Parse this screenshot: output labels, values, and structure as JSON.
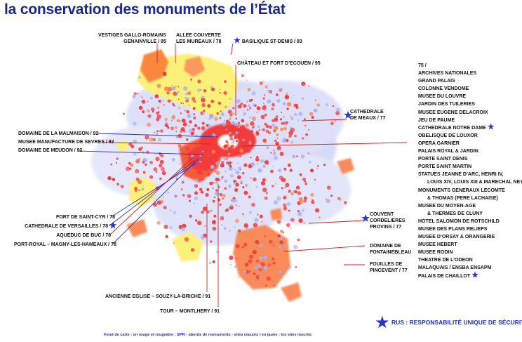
{
  "title": "la conservation des monuments de l’État",
  "labels": {
    "vestiges": [
      "VESTIGES GALLO-ROMAINS",
      "GENAINVILLE / 95"
    ],
    "allee": [
      "ALLEE COUVERTE",
      "LES MUREAUX / 78"
    ],
    "basilique": "BASILIQUE ST-DENIS / 93",
    "ecouen": "CHÂTEAU ET FORT D’ECOUEN / 95",
    "meaux": [
      "CATHEDRALE",
      "DE MEAUX / 77"
    ],
    "malmaison": "DOMAINE DE LA MALMAISON / 92",
    "sevres": "MUSEE MANUFACTURE DE SEVRES / 92",
    "meudon": "DOMAINE DE MEUDON / 92",
    "saintcyr": "FORT DE SAINT-CYR / 78",
    "versailles": "CATHEDRALE DE VERSAILLES / 78",
    "buc": "AQUEDUC DE BUC / 78",
    "portroyal": "PORT-ROYAL – MAGNY-LES-HAMEAUX / 78",
    "provins": [
      "COUVENT",
      "CORDELIERES",
      "PROVINS / 77"
    ],
    "fontainebleau": [
      "DOMAINE DE",
      "FONTAINEBLEAU"
    ],
    "pincevent": [
      "FOUILLES DE",
      "PINCEVENT / 77"
    ],
    "souzy": "ANCIENNE EGLISE – SOUZY-LA-BRICHE / 91",
    "montlhery": "TOUR – MONTLHERY / 91"
  },
  "paris_list": [
    {
      "text": "75 /"
    },
    {
      "text": "ARCHIVES NATIONALES"
    },
    {
      "text": "GRAND PALAIS"
    },
    {
      "text": "COLONNE VENDOME"
    },
    {
      "text": "MUSEE DU LOUVRE"
    },
    {
      "text": "JARDIN DES TUILERIES"
    },
    {
      "text": "MUSEE EUGENE DELACROIX"
    },
    {
      "text": "JEU DE PAUME"
    },
    {
      "text": "CATHEDRALE NOTRE DAME",
      "star": true
    },
    {
      "text": "OBELISQUE DE LOUXOR"
    },
    {
      "text": "OPERA GARNIER"
    },
    {
      "text": "PALAIS ROYAL & JARDIN"
    },
    {
      "text": "PORTE SAINT DENIS"
    },
    {
      "text": "PORTE SAINT MARTIN"
    },
    {
      "text": "STATUES JEANNE D’ARC, HENRI IV,"
    },
    {
      "text": "LOUIS XIV, LOUIS XIII & MARECHAL NEY",
      "indent": true
    },
    {
      "text": "MONUMENTS GENERAUX LECOMTE"
    },
    {
      "text": "& THOMAS (PERE LACHAISE)",
      "indent": true
    },
    {
      "text": "MUSEE DU MOYEN-AGE"
    },
    {
      "text": "& THERMES DE CLUNY",
      "indent": true
    },
    {
      "text": "HOTEL SALOMON DE ROTSCHILD"
    },
    {
      "text": "MUSEE DES PLANS RELIEFS"
    },
    {
      "text": "MUSEE D’ORSAY & ORANGERIE"
    },
    {
      "text": "MUSEE HEBERT"
    },
    {
      "text": "MUSEE RODIN"
    },
    {
      "text": "THEATRE DE L’ODEON"
    },
    {
      "text": "MALAQUAIS / ENSBA ENSAPM"
    },
    {
      "text": "PALAIS DE CHAILLOT",
      "star": true
    }
  ],
  "star_glyph": "★",
  "legend": "RUS : RESPONSABILITÉ UNIQUE DE SÉCURITÉ",
  "footnote": "Fond de carte : en rouge et rougeâtre : SPR - abords de monuments - sites classés / en jaune : les sites inscrits",
  "colors": {
    "title": "#1a2a8c",
    "star": "#2b34c9",
    "spr_red": "#f23a3a",
    "site_orange": "#f98b5a",
    "site_yellow": "#fbf07a",
    "urban_blue": "#aab0ee",
    "leader_red": "#d41e1e",
    "leader_blue": "#2a36b5"
  }
}
